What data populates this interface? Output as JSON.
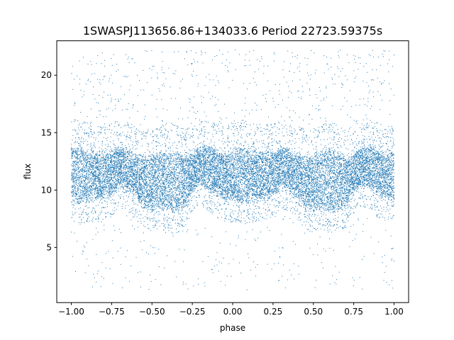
{
  "chart_data": {
    "type": "scatter",
    "title": "1SWASPJ113656.86+134033.6 Period 22723.59375s",
    "xlabel": "phase",
    "ylabel": "flux",
    "xlim": [
      -1.09,
      1.09
    ],
    "ylim": [
      0.2,
      23.0
    ],
    "xticks": [
      "−1.00",
      "−0.75",
      "−0.50",
      "−0.25",
      "0.00",
      "0.25",
      "0.50",
      "0.75",
      "1.00"
    ],
    "xtick_values": [
      -1.0,
      -0.75,
      -0.5,
      -0.25,
      0.0,
      0.25,
      0.5,
      0.75,
      1.0
    ],
    "yticks": [
      "5",
      "10",
      "15",
      "20"
    ],
    "ytick_values": [
      5,
      10,
      15,
      20
    ],
    "grid": false,
    "legend": "none",
    "marker_color": "#1f77b4",
    "series": [
      {
        "phase": [
          -1.0,
          -0.95,
          -0.9,
          -0.85,
          -0.8,
          -0.75,
          -0.7,
          -0.65,
          -0.6,
          -0.55,
          -0.5,
          -0.45,
          -0.4,
          -0.35,
          -0.3,
          -0.25,
          -0.2,
          -0.15,
          -0.1,
          -0.05,
          0.0,
          0.05,
          0.1,
          0.15,
          0.2,
          0.25,
          0.3,
          0.35,
          0.4,
          0.45,
          0.5,
          0.55,
          0.6,
          0.65,
          0.7,
          0.75,
          0.8,
          0.85,
          0.9,
          0.95,
          1.0
        ],
        "band_upper_flux": [
          13.5,
          13.8,
          13.4,
          13.2,
          13.1,
          13.3,
          13.6,
          13.5,
          13.0,
          12.8,
          12.9,
          13.2,
          13.4,
          13.2,
          12.9,
          13.0,
          13.6,
          13.8,
          13.4,
          13.0,
          13.5,
          13.8,
          13.4,
          13.2,
          13.1,
          13.3,
          13.6,
          13.5,
          13.0,
          12.8,
          12.9,
          13.2,
          13.4,
          13.2,
          12.9,
          13.0,
          13.6,
          13.8,
          13.4,
          13.0,
          13.5
        ],
        "band_lower_flux": [
          9.2,
          9.0,
          9.1,
          9.3,
          9.4,
          9.6,
          10.5,
          10.0,
          9.5,
          8.5,
          8.3,
          8.6,
          8.3,
          8.2,
          8.6,
          10.0,
          10.6,
          10.2,
          9.6,
          9.3,
          9.2,
          9.0,
          9.1,
          9.3,
          9.4,
          9.6,
          10.5,
          10.0,
          9.5,
          8.5,
          8.3,
          8.6,
          8.3,
          8.2,
          8.6,
          10.0,
          10.6,
          10.2,
          9.6,
          9.3,
          9.2
        ]
      }
    ]
  }
}
